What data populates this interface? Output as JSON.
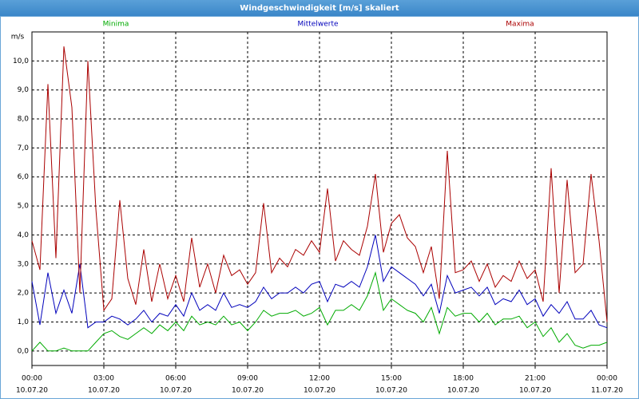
{
  "window": {
    "title": "Windgeschwindigkeit [m/s] skaliert"
  },
  "chart_data": {
    "type": "line",
    "y_unit": "m/s",
    "x": [
      0,
      20,
      40,
      60,
      80,
      100,
      120,
      140,
      160,
      180,
      200,
      220,
      240,
      260,
      280,
      300,
      320,
      340,
      360,
      380,
      400,
      420,
      440,
      460,
      480,
      500,
      520,
      540,
      560,
      580,
      600,
      620,
      640,
      660,
      680,
      700,
      720,
      740,
      760,
      780,
      800,
      820,
      840,
      860,
      880,
      900,
      920,
      940,
      960,
      980,
      1000,
      1020,
      1040,
      1060,
      1080,
      1100,
      1120,
      1140,
      1160,
      1180,
      1200,
      1220,
      1240,
      1260,
      1280,
      1300,
      1320,
      1340,
      1360,
      1380,
      1400,
      1420,
      1440
    ],
    "series": [
      {
        "name": "Minima",
        "color": "#00aa00",
        "values": [
          0.0,
          0.3,
          0.0,
          0.0,
          0.1,
          0.0,
          0.0,
          0.0,
          0.3,
          0.6,
          0.7,
          0.5,
          0.4,
          0.6,
          0.8,
          0.6,
          0.9,
          0.7,
          1.0,
          0.7,
          1.2,
          0.9,
          1.0,
          0.9,
          1.2,
          0.9,
          1.0,
          0.7,
          1.0,
          1.4,
          1.2,
          1.3,
          1.3,
          1.4,
          1.2,
          1.3,
          1.5,
          0.9,
          1.4,
          1.4,
          1.6,
          1.4,
          1.9,
          2.7,
          1.4,
          1.8,
          1.6,
          1.4,
          1.3,
          1.0,
          1.5,
          0.6,
          1.5,
          1.2,
          1.3,
          1.3,
          1.0,
          1.3,
          0.9,
          1.1,
          1.1,
          1.2,
          0.8,
          1.0,
          0.5,
          0.8,
          0.3,
          0.6,
          0.2,
          0.1,
          0.2,
          0.2,
          0.3
        ]
      },
      {
        "name": "Mittelwerte",
        "color": "#0000bb",
        "values": [
          2.4,
          0.9,
          2.7,
          1.3,
          2.1,
          1.3,
          3.0,
          0.8,
          1.0,
          1.0,
          1.2,
          1.1,
          0.9,
          1.1,
          1.4,
          1.0,
          1.3,
          1.2,
          1.6,
          1.2,
          2.0,
          1.4,
          1.6,
          1.4,
          2.0,
          1.5,
          1.6,
          1.5,
          1.7,
          2.2,
          1.8,
          2.0,
          2.0,
          2.2,
          2.0,
          2.3,
          2.4,
          1.7,
          2.3,
          2.2,
          2.4,
          2.2,
          2.9,
          4.0,
          2.4,
          2.9,
          2.7,
          2.5,
          2.3,
          1.9,
          2.3,
          1.3,
          2.6,
          2.0,
          2.1,
          2.2,
          1.9,
          2.2,
          1.6,
          1.8,
          1.7,
          2.1,
          1.6,
          1.8,
          1.2,
          1.6,
          1.3,
          1.7,
          1.1,
          1.1,
          1.4,
          0.9,
          0.8
        ]
      },
      {
        "name": "Maxima",
        "color": "#aa0000",
        "values": [
          3.8,
          2.8,
          9.2,
          3.2,
          10.5,
          8.4,
          2.0,
          10.0,
          4.9,
          1.4,
          1.8,
          5.2,
          2.5,
          1.6,
          3.5,
          1.7,
          3.0,
          1.8,
          2.6,
          1.7,
          3.9,
          2.2,
          3.0,
          2.0,
          3.3,
          2.6,
          2.8,
          2.3,
          2.7,
          5.1,
          2.7,
          3.2,
          2.9,
          3.5,
          3.3,
          3.8,
          3.4,
          5.6,
          3.1,
          3.8,
          3.5,
          3.3,
          4.3,
          6.1,
          3.4,
          4.4,
          4.7,
          3.9,
          3.6,
          2.7,
          3.6,
          1.8,
          6.9,
          2.7,
          2.8,
          3.1,
          2.4,
          3.0,
          2.2,
          2.6,
          2.4,
          3.1,
          2.5,
          2.8,
          1.7,
          6.3,
          2.0,
          5.9,
          2.7,
          3.0,
          6.1,
          3.8,
          1.0
        ]
      }
    ],
    "xlim": [
      0,
      1440
    ],
    "xticks": [
      {
        "value": 0,
        "label": "00:00",
        "sublabel": "10.07.20"
      },
      {
        "value": 180,
        "label": "03:00",
        "sublabel": "10.07.20"
      },
      {
        "value": 360,
        "label": "06:00",
        "sublabel": "10.07.20"
      },
      {
        "value": 540,
        "label": "09:00",
        "sublabel": "10.07.20"
      },
      {
        "value": 720,
        "label": "12:00",
        "sublabel": "10.07.20"
      },
      {
        "value": 900,
        "label": "15:00",
        "sublabel": "10.07.20"
      },
      {
        "value": 1080,
        "label": "18:00",
        "sublabel": "10.07.20"
      },
      {
        "value": 1260,
        "label": "21:00",
        "sublabel": "10.07.20"
      },
      {
        "value": 1440,
        "label": "00:00",
        "sublabel": "11.07.20"
      }
    ],
    "ylim": [
      -0.5,
      11
    ],
    "yticks": [
      {
        "value": 0,
        "label": "0,0"
      },
      {
        "value": 1,
        "label": "1,0"
      },
      {
        "value": 2,
        "label": "2,0"
      },
      {
        "value": 3,
        "label": "3,0"
      },
      {
        "value": 4,
        "label": "4,0"
      },
      {
        "value": 5,
        "label": "5,0"
      },
      {
        "value": 6,
        "label": "6,0"
      },
      {
        "value": 7,
        "label": "7,0"
      },
      {
        "value": 8,
        "label": "8,0"
      },
      {
        "value": 9,
        "label": "9,0"
      },
      {
        "value": 10,
        "label": "10,0"
      }
    ],
    "grid": true
  }
}
